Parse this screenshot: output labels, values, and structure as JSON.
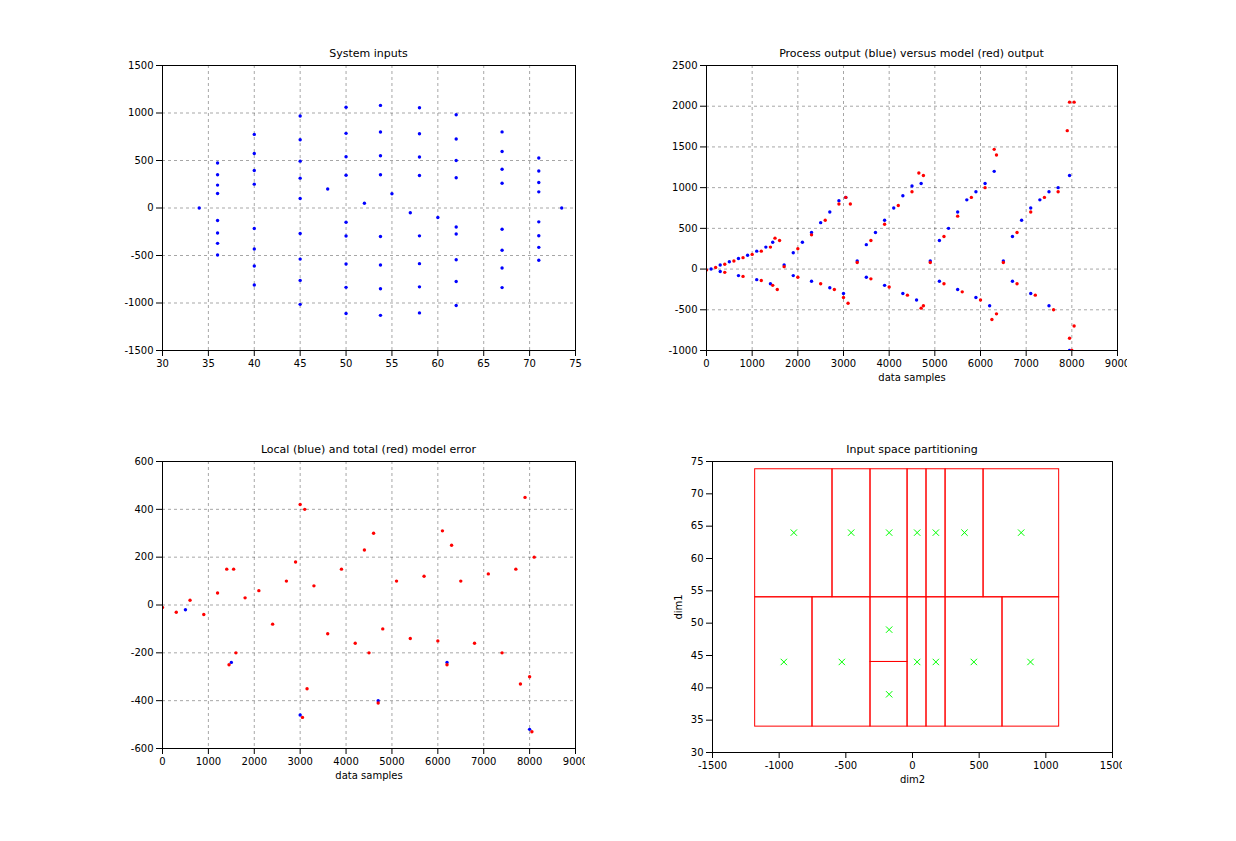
{
  "chart_data": [
    {
      "type": "scatter",
      "title": "System inputs",
      "xlim": [
        30,
        75
      ],
      "xticks": [
        30,
        35,
        40,
        45,
        50,
        55,
        60,
        65,
        70,
        75
      ],
      "ylim": [
        -1500,
        1500
      ],
      "yticks": [
        -1500,
        -1000,
        -500,
        0,
        500,
        1000,
        1500
      ],
      "grid": true,
      "series": [
        {
          "color": "#0000ff",
          "marker": "dot",
          "x": [
            36,
            40,
            45,
            50,
            53.75,
            58,
            62,
            67,
            71,
            36,
            40,
            45,
            50,
            53.75,
            58,
            62,
            67,
            71,
            36,
            40,
            45,
            50,
            53.75,
            58,
            62,
            67,
            71,
            36,
            40,
            45,
            50,
            53.75,
            58,
            62,
            67,
            71,
            36,
            40,
            45,
            50,
            53.75,
            58,
            62,
            67,
            71,
            36,
            40,
            45,
            50,
            53.75,
            58,
            62,
            67,
            71,
            36,
            40,
            45,
            50,
            53.75,
            58,
            62,
            67,
            71,
            36,
            40,
            45,
            50,
            53.75,
            58,
            62,
            67,
            71,
            34,
            73.5,
            45,
            50,
            55,
            60,
            52,
            57,
            48,
            62
          ],
          "values": [
            473,
            775,
            969,
            1061,
            1080,
            1055,
            982,
            801,
            526,
            350,
            574,
            718,
            786,
            800,
            782,
            727,
            594,
            390,
            241,
            395,
            493,
            540,
            550,
            537,
            500,
            408,
            268,
            153,
            251,
            314,
            344,
            350,
            342,
            318,
            260,
            170,
            -495,
            -811,
            -1014,
            -1110,
            -1130,
            -1104,
            -1027,
            -838,
            -550,
            -372,
            -610,
            -762,
            -835,
            -850,
            -830,
            -773,
            -631,
            -414,
            -263,
            -431,
            -538,
            -589,
            -600,
            -586,
            -545,
            -445,
            -292,
            -131,
            -215,
            -269,
            -295,
            -300,
            -293,
            -273,
            -223,
            -146,
            0,
            0,
            100,
            -150,
            150,
            -100,
            50,
            -50,
            200,
            -200
          ]
        }
      ]
    },
    {
      "type": "scatter",
      "title": "Process output (blue) versus model (red) output",
      "xlabel": "data samples",
      "xlim": [
        0,
        9000
      ],
      "xticks": [
        0,
        1000,
        2000,
        3000,
        4000,
        5000,
        6000,
        7000,
        8000,
        9000
      ],
      "ylim": [
        -1000,
        2500
      ],
      "yticks": [
        -1000,
        -500,
        0,
        500,
        1000,
        1500,
        2000,
        2500
      ],
      "grid": true,
      "series": [
        {
          "color": "#0000ff",
          "marker": "dot",
          "x": [
            100,
            300,
            500,
            700,
            900,
            1100,
            1300,
            1450,
            300,
            700,
            1100,
            1400,
            1700,
            1900,
            2100,
            2300,
            2500,
            2700,
            2900,
            3050,
            1900,
            2300,
            2700,
            3000,
            3300,
            3500,
            3700,
            3900,
            4100,
            4300,
            4500,
            4700,
            3500,
            3900,
            4300,
            4600,
            4900,
            5100,
            5300,
            5500,
            5700,
            5900,
            6100,
            6300,
            5100,
            5500,
            5900,
            6200,
            6500,
            6700,
            6900,
            7100,
            7300,
            7500,
            7700,
            7950,
            6700,
            7100,
            7500,
            7950
          ],
          "values": [
            0,
            50,
            90,
            130,
            170,
            220,
            270,
            330,
            -30,
            -80,
            -130,
            -180,
            50,
            200,
            330,
            450,
            570,
            700,
            840,
            880,
            -80,
            -150,
            -230,
            -300,
            100,
            300,
            450,
            600,
            750,
            900,
            1020,
            1050,
            -100,
            -200,
            -300,
            -380,
            100,
            350,
            500,
            700,
            850,
            950,
            1050,
            1200,
            -150,
            -250,
            -350,
            -450,
            100,
            400,
            600,
            750,
            850,
            950,
            1000,
            1150,
            -150,
            -300,
            -450,
            -1000
          ]
        },
        {
          "color": "#ff0000",
          "marker": "dot",
          "x": [
            0,
            200,
            400,
            600,
            800,
            1000,
            1200,
            1400,
            1500,
            1550,
            400,
            800,
            1200,
            1450,
            1600,
            1700,
            2000,
            2300,
            2600,
            2900,
            3050,
            3100,
            3150,
            3000,
            2000,
            2500,
            2800,
            3300,
            3600,
            3900,
            4200,
            4500,
            4650,
            4750,
            4700,
            4750,
            3600,
            4000,
            4400,
            4900,
            5200,
            5500,
            5800,
            6100,
            6300,
            6350,
            6250,
            6350,
            5200,
            5600,
            6000,
            6500,
            6800,
            7100,
            7400,
            7700,
            7900,
            7950,
            8050,
            8000,
            7950,
            6800,
            7200,
            7600,
            8050
          ],
          "values": [
            -10,
            20,
            60,
            100,
            140,
            180,
            220,
            270,
            380,
            -250,
            -40,
            -90,
            -140,
            -200,
            350,
            30,
            250,
            420,
            600,
            800,
            880,
            -420,
            800,
            -350,
            -100,
            -180,
            -250,
            80,
            350,
            550,
            780,
            950,
            1180,
            1150,
            -480,
            -450,
            -120,
            -220,
            -320,
            80,
            400,
            650,
            880,
            1000,
            1470,
            1400,
            -620,
            -550,
            -180,
            -280,
            -380,
            80,
            450,
            700,
            880,
            950,
            1700,
            2050,
            2050,
            -1000,
            -850,
            -180,
            -320,
            -500,
            -700
          ]
        }
      ]
    },
    {
      "type": "scatter",
      "title": "Local (blue) and total (red) model error",
      "xlabel": "data samples",
      "xlim": [
        0,
        9000
      ],
      "xticks": [
        0,
        1000,
        2000,
        3000,
        4000,
        5000,
        6000,
        7000,
        8000,
        9000
      ],
      "ylim": [
        -600,
        600
      ],
      "yticks": [
        -600,
        -400,
        -200,
        0,
        200,
        400,
        600
      ],
      "grid": true,
      "series": [
        {
          "color": "#0000ff",
          "marker": "dot",
          "x": [
            500,
            1500,
            3000,
            4700,
            6200,
            8000
          ],
          "values": [
            -20,
            -240,
            -460,
            -400,
            -240,
            -520
          ]
        },
        {
          "color": "#ff0000",
          "marker": "dot",
          "x": [
            0,
            300,
            600,
            900,
            1200,
            1400,
            1450,
            1550,
            1600,
            1800,
            2100,
            2400,
            2700,
            2900,
            3000,
            3050,
            3100,
            3150,
            3300,
            3600,
            3900,
            4200,
            4400,
            4500,
            4600,
            4700,
            4800,
            5100,
            5400,
            5700,
            6000,
            6100,
            6200,
            6300,
            6500,
            6800,
            7100,
            7400,
            7700,
            7800,
            7900,
            8000,
            8050,
            8100
          ],
          "values": [
            -10,
            -30,
            20,
            -40,
            50,
            150,
            -250,
            150,
            -200,
            30,
            60,
            -80,
            100,
            180,
            420,
            -470,
            400,
            -350,
            80,
            -120,
            150,
            -160,
            230,
            -200,
            300,
            -410,
            -100,
            100,
            -140,
            120,
            -150,
            310,
            -250,
            250,
            100,
            -160,
            130,
            -200,
            150,
            -330,
            450,
            -300,
            -530,
            200
          ]
        }
      ]
    },
    {
      "type": "rect",
      "title": "Input space partitioning",
      "xlabel": "dim2",
      "ylabel": "dim1",
      "xlim": [
        -1500,
        1500
      ],
      "xticks": [
        -1500,
        -1000,
        -500,
        0,
        500,
        1000,
        1500
      ],
      "ylim": [
        30,
        75
      ],
      "yticks": [
        30,
        35,
        40,
        45,
        50,
        55,
        60,
        65,
        70,
        75
      ],
      "grid": false,
      "rectangles": {
        "color": "#ff0000",
        "x1": [
          -1180,
          -600,
          -315,
          -37,
          105,
          248,
          533,
          -1180,
          -750,
          -315,
          -315,
          -37,
          105,
          248,
          675
        ],
        "x2": [
          -600,
          -315,
          -37,
          105,
          248,
          533,
          1100,
          -750,
          -315,
          -37,
          -37,
          105,
          248,
          675,
          1100
        ],
        "y1": [
          54,
          54,
          54,
          54,
          54,
          54,
          54,
          34,
          34,
          44,
          34,
          34,
          34,
          34,
          34
        ],
        "y2": [
          73.8,
          73.8,
          73.8,
          73.8,
          73.8,
          73.8,
          73.8,
          54,
          54,
          54,
          44,
          54,
          54,
          54,
          54
        ]
      },
      "centers": {
        "color": "#00ff00",
        "marker": "x",
        "x": [
          -890,
          -460,
          -175,
          35,
          175,
          390,
          815,
          -965,
          -530,
          -175,
          -175,
          35,
          175,
          460,
          885
        ],
        "values": [
          64,
          64,
          64,
          64,
          64,
          64,
          64,
          44,
          44,
          49,
          39,
          44,
          44,
          44,
          44
        ]
      }
    }
  ]
}
